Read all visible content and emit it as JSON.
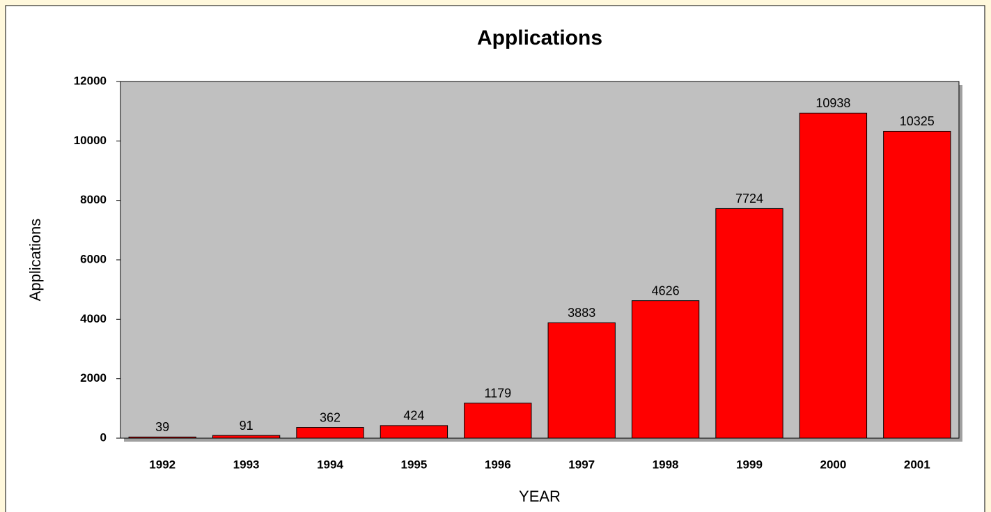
{
  "chart_data": {
    "type": "bar",
    "title": "Applications",
    "x_label": "YEAR",
    "y_label": "Applications",
    "categories": [
      "1992",
      "1993",
      "1994",
      "1995",
      "1996",
      "1997",
      "1998",
      "1999",
      "2000",
      "2001"
    ],
    "values": [
      39,
      91,
      362,
      424,
      1179,
      3883,
      4626,
      7724,
      10938,
      10325
    ],
    "color": "#ff0000",
    "background": "#c0c0c0",
    "ylim": [
      0,
      12000
    ],
    "yticks": [
      0,
      2000,
      4000,
      6000,
      8000,
      10000,
      12000
    ],
    "grid": false
  }
}
